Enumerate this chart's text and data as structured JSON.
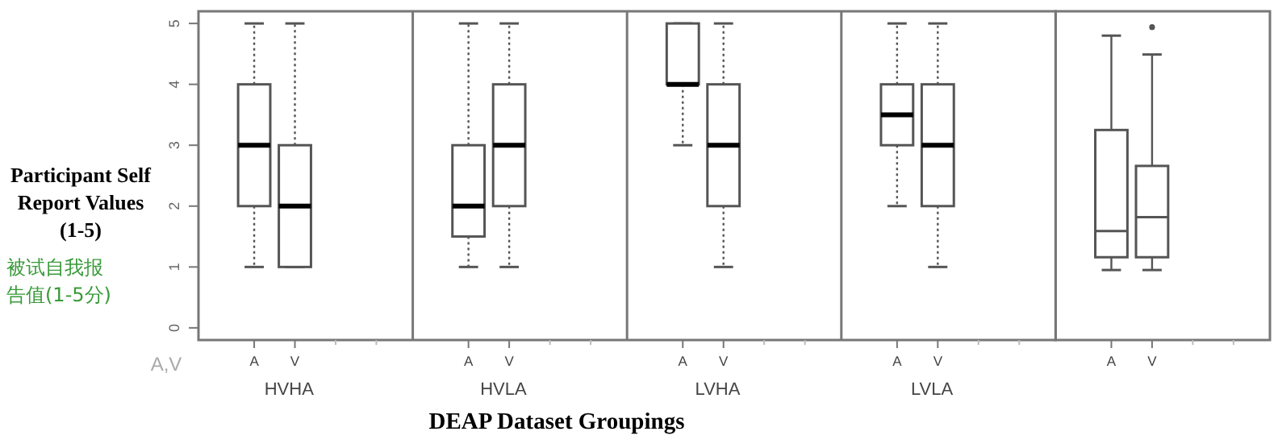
{
  "chart_data": [
    {
      "type": "box",
      "ylabel": "Participant Self Report Values (1-5)",
      "xlabel": "DEAP Dataset Groupings",
      "annotations": [
        "被试自我报告值(1-5分)",
        "A,V",
        "HVHA",
        "HVLA",
        "LVHA",
        "LVLA"
      ],
      "categories": [
        "A",
        "V",
        "A",
        "V",
        "A",
        "V",
        "A",
        "V"
      ],
      "ylim": [
        -0.2,
        5.2
      ],
      "yticks": [
        0,
        1,
        2,
        3,
        4,
        5
      ],
      "line_style": "dotted",
      "color": "#555555",
      "boxes": [
        {
          "low": 1,
          "q1": 2,
          "median": 3,
          "q3": 4,
          "high": 5
        },
        {
          "low": 1,
          "q1": 1,
          "median": 2,
          "q3": 3,
          "high": 5
        },
        {
          "low": 1,
          "q1": 1.5,
          "median": 2,
          "q3": 3,
          "high": 5
        },
        {
          "low": 1,
          "q1": 2,
          "median": 3,
          "q3": 4,
          "high": 5
        },
        {
          "low": 3,
          "q1": 4,
          "median": 4,
          "q3": 5,
          "high": 5
        },
        {
          "low": 1,
          "q1": 2,
          "median": 3,
          "q3": 4,
          "high": 5
        },
        {
          "low": 2,
          "q1": 3,
          "median": 3.5,
          "q3": 4,
          "high": 5
        },
        {
          "low": 1,
          "q1": 2,
          "median": 3,
          "q3": 4,
          "high": 5
        }
      ]
    },
    {
      "type": "box",
      "categories": [
        "A",
        "V"
      ],
      "ylim": [
        -0.2,
        5.2
      ],
      "tick_labels": "x",
      "line_style": "solid",
      "color": "#555555",
      "boxes": [
        {
          "low": 0.95,
          "q1": 1.16,
          "median": 1.59,
          "q3": 3.25,
          "high": 4.8
        },
        {
          "low": 0.95,
          "q1": 1.16,
          "median": 1.82,
          "q3": 2.66,
          "high": 4.49,
          "outliers": [
            4.94
          ]
        }
      ]
    }
  ]
}
